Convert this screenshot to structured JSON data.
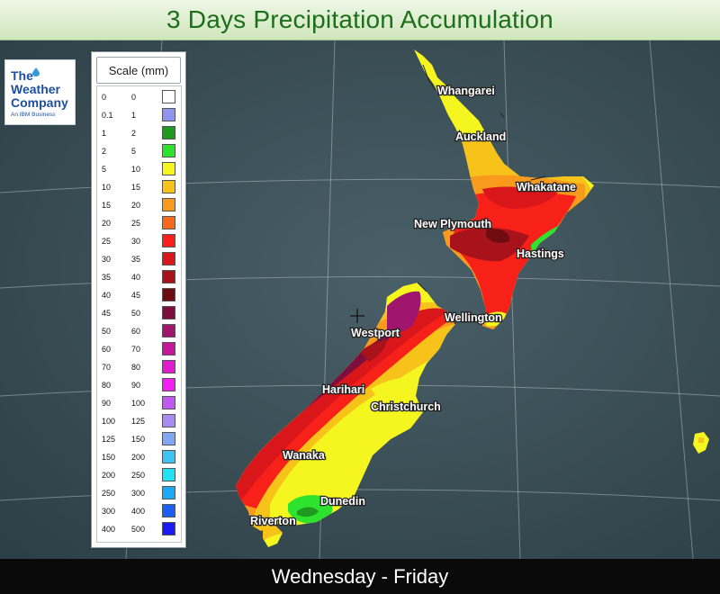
{
  "title": "3 Days Precipitation Accumulation",
  "period": "Wednesday - Friday",
  "logo": {
    "line1": "The",
    "line2": "Weather",
    "line3": "Company",
    "sub": "An IBM Business",
    "color": "#1e4f9e"
  },
  "legend": {
    "title": "Scale (mm)",
    "rows": [
      {
        "from": "0",
        "to": "0",
        "color": "#ffffff"
      },
      {
        "from": "0.1",
        "to": "1",
        "color": "#8f94f0"
      },
      {
        "from": "1",
        "to": "2",
        "color": "#1f9a1f"
      },
      {
        "from": "2",
        "to": "5",
        "color": "#2ee32e"
      },
      {
        "from": "5",
        "to": "10",
        "color": "#f5f51f"
      },
      {
        "from": "10",
        "to": "15",
        "color": "#f7c21a"
      },
      {
        "from": "15",
        "to": "20",
        "color": "#f79a1e"
      },
      {
        "from": "20",
        "to": "25",
        "color": "#f76a1e"
      },
      {
        "from": "25",
        "to": "30",
        "color": "#f7211a"
      },
      {
        "from": "30",
        "to": "35",
        "color": "#d9161a"
      },
      {
        "from": "35",
        "to": "40",
        "color": "#a8121a"
      },
      {
        "from": "40",
        "to": "45",
        "color": "#6e0c12"
      },
      {
        "from": "45",
        "to": "50",
        "color": "#7d0f3e"
      },
      {
        "from": "50",
        "to": "60",
        "color": "#a0156e"
      },
      {
        "from": "60",
        "to": "70",
        "color": "#c4179a"
      },
      {
        "from": "70",
        "to": "80",
        "color": "#e01cd0"
      },
      {
        "from": "80",
        "to": "90",
        "color": "#f21ef2"
      },
      {
        "from": "90",
        "to": "100",
        "color": "#c258f2"
      },
      {
        "from": "100",
        "to": "125",
        "color": "#a98af2"
      },
      {
        "from": "125",
        "to": "150",
        "color": "#7fa7f2"
      },
      {
        "from": "150",
        "to": "200",
        "color": "#3fc3f2"
      },
      {
        "from": "200",
        "to": "250",
        "color": "#1fe2f2"
      },
      {
        "from": "250",
        "to": "300",
        "color": "#1aa9f2"
      },
      {
        "from": "300",
        "to": "400",
        "color": "#1a5ff2"
      },
      {
        "from": "400",
        "to": "500",
        "color": "#1a1af2"
      }
    ]
  },
  "cities": [
    {
      "name": "Whangarei"
    },
    {
      "name": "Auckland"
    },
    {
      "name": "Whakatane"
    },
    {
      "name": "New Plymouth"
    },
    {
      "name": "Hastings"
    },
    {
      "name": "Wellington"
    },
    {
      "name": "Westport"
    },
    {
      "name": "Harihari"
    },
    {
      "name": "Christchurch"
    },
    {
      "name": "Wanaka"
    },
    {
      "name": "Dunedin"
    },
    {
      "name": "Riverton"
    }
  ],
  "colors": {
    "sea": "#33474f",
    "land_base": "#f5f51f",
    "header_text": "#1d6f1a"
  }
}
